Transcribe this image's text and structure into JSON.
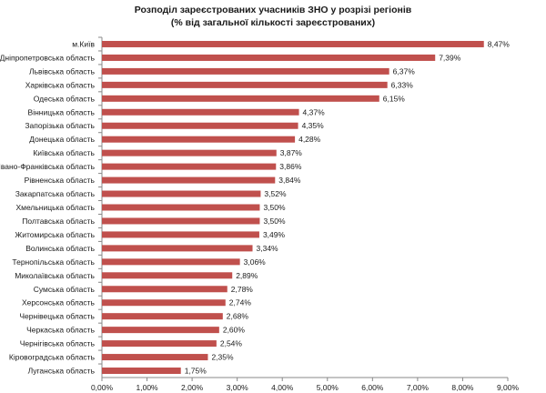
{
  "chart_data": {
    "type": "bar",
    "orientation": "horizontal",
    "title_line1": "Розподіл зареєстрованих учасників ЗНО у розрізі регіонів",
    "title_line2": "(% від загальної кількості зареєстрованих)",
    "categories": [
      "м.Київ",
      "Дніпропетровська область",
      "Львівська область",
      "Харківська область",
      "Одеська область",
      "Вінницька область",
      "Запорізька область",
      "Донецька область",
      "Київська область",
      "Івано-Франківська область",
      "Рівненська область",
      "Закарпатська область",
      "Хмельницька область",
      "Полтавська область",
      "Житомирська область",
      "Волинська область",
      "Тернопільська область",
      "Миколаївська область",
      "Сумська область",
      "Херсонська область",
      "Чернівецька область",
      "Черкаська область",
      "Чернігівська область",
      "Кіровоградська область",
      "Луганська область"
    ],
    "values": [
      8.47,
      7.39,
      6.37,
      6.33,
      6.15,
      4.37,
      4.35,
      4.28,
      3.87,
      3.86,
      3.84,
      3.52,
      3.5,
      3.5,
      3.49,
      3.34,
      3.06,
      2.89,
      2.78,
      2.74,
      2.68,
      2.6,
      2.54,
      2.35,
      1.75
    ],
    "value_labels": [
      "8,47%",
      "7,39%",
      "6,37%",
      "6,33%",
      "6,15%",
      "4,37%",
      "4,35%",
      "4,28%",
      "3,87%",
      "3,86%",
      "3,84%",
      "3,52%",
      "3,50%",
      "3,50%",
      "3,49%",
      "3,34%",
      "3,06%",
      "2,89%",
      "2,78%",
      "2,74%",
      "2,68%",
      "2,60%",
      "2,54%",
      "2,35%",
      "1,75%"
    ],
    "xlim": [
      0,
      9
    ],
    "x_ticks": [
      0,
      1,
      2,
      3,
      4,
      5,
      6,
      7,
      8,
      9
    ],
    "x_tick_labels": [
      "0,00%",
      "1,00%",
      "2,00%",
      "3,00%",
      "4,00%",
      "5,00%",
      "6,00%",
      "7,00%",
      "8,00%",
      "9,00%"
    ],
    "grid": false,
    "bar_color": "#c0504d"
  }
}
